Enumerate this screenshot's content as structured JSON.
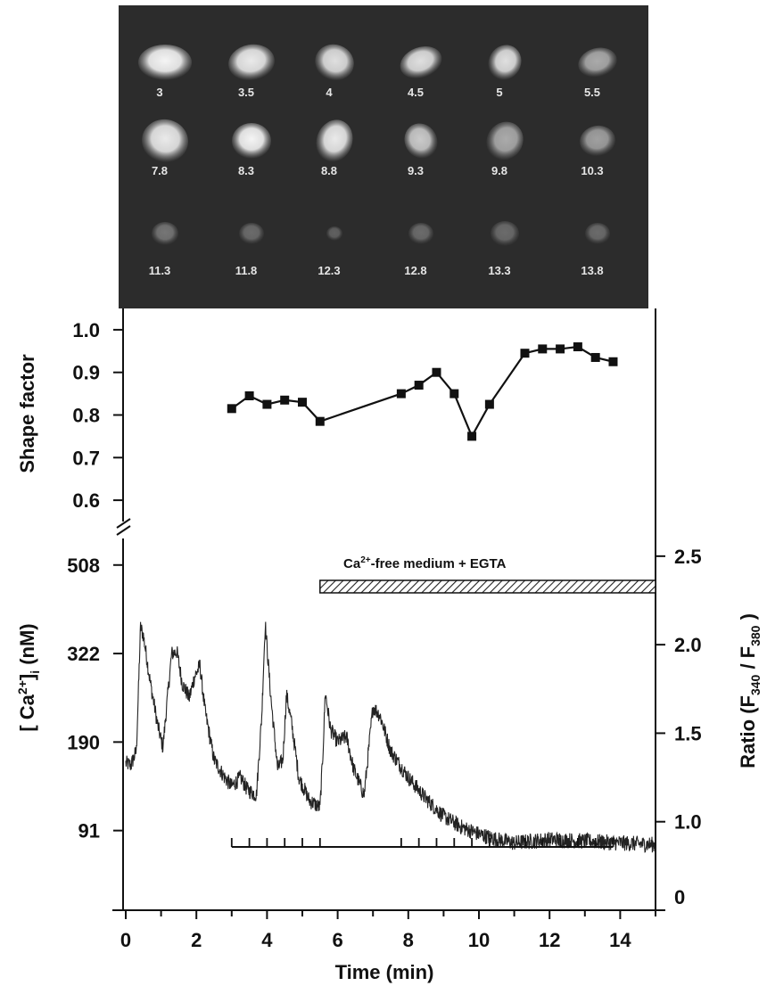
{
  "chart_data": [
    {
      "type": "image-grid",
      "panel": "cell-images",
      "frame_times_min": [
        "3",
        "3.5",
        "4",
        "4.5",
        "5",
        "5.5",
        "7.8",
        "8.3",
        "8.8",
        "9.3",
        "9.8",
        "10.3",
        "11.3",
        "11.8",
        "12.3",
        "12.8",
        "13.3",
        "13.8"
      ],
      "brightness": [
        0.95,
        0.9,
        0.85,
        0.85,
        0.85,
        0.6,
        0.9,
        0.95,
        0.9,
        0.75,
        0.6,
        0.55,
        0.35,
        0.3,
        0.25,
        0.3,
        0.3,
        0.3
      ]
    },
    {
      "type": "line",
      "panel": "shape-factor",
      "ylabel": "Shape factor",
      "ylim": [
        0.55,
        1.05
      ],
      "yticks": [
        "0.6",
        "0.7",
        "0.8",
        "0.9",
        "1.0"
      ],
      "series": [
        {
          "x": [
            3,
            3.5,
            4,
            4.5,
            5,
            5.5,
            7.8,
            8.3,
            8.8,
            9.3,
            9.8,
            10.3,
            11.3,
            11.8,
            12.3,
            12.8,
            13.3,
            13.8
          ],
          "values": [
            0.815,
            0.845,
            0.825,
            0.835,
            0.83,
            0.785,
            0.85,
            0.87,
            0.9,
            0.85,
            0.75,
            0.825,
            0.945,
            0.955,
            0.955,
            0.96,
            0.935,
            0.925
          ]
        }
      ]
    },
    {
      "type": "line",
      "panel": "calcium",
      "xlabel": "Time (min)",
      "ylabel": "[Ca2+]i (nM)",
      "ylabel2": "Ratio (F340 / F380)",
      "xlim": [
        0,
        15
      ],
      "ylim_ratio": [
        0.5,
        2.6
      ],
      "xticks": [
        "0",
        "2",
        "4",
        "6",
        "8",
        "10",
        "12",
        "14"
      ],
      "yticks_left": [
        "91",
        "190",
        "322",
        "508"
      ],
      "yticks_left_ratio": [
        0.95,
        1.45,
        1.95,
        2.45
      ],
      "yticks_right": [
        "1.0",
        "1.5",
        "2.0",
        "2.5"
      ],
      "yticks_right_ratio": [
        1.0,
        1.5,
        2.0,
        2.5
      ],
      "right_zero_label": "0",
      "annotation": "Ca2+-free medium + EGTA",
      "annotation_x": [
        5.5,
        15
      ],
      "image_marks_min": [
        3,
        3.5,
        4,
        4.5,
        5,
        5.5,
        7.8,
        8.3,
        8.8,
        9.3,
        9.8,
        10.3,
        11.3,
        11.8,
        12.3,
        12.8,
        13.3,
        13.8
      ],
      "trace_keypoints": [
        [
          0.0,
          1.33
        ],
        [
          0.15,
          1.32
        ],
        [
          0.3,
          1.4
        ],
        [
          0.42,
          2.1
        ],
        [
          0.5,
          2.05
        ],
        [
          0.7,
          1.78
        ],
        [
          0.9,
          1.55
        ],
        [
          1.05,
          1.42
        ],
        [
          1.3,
          1.95
        ],
        [
          1.45,
          1.96
        ],
        [
          1.6,
          1.78
        ],
        [
          1.8,
          1.7
        ],
        [
          1.95,
          1.82
        ],
        [
          2.1,
          1.88
        ],
        [
          2.25,
          1.62
        ],
        [
          2.5,
          1.35
        ],
        [
          2.8,
          1.25
        ],
        [
          3.0,
          1.2
        ],
        [
          3.25,
          1.25
        ],
        [
          3.45,
          1.18
        ],
        [
          3.7,
          1.15
        ],
        [
          3.85,
          1.6
        ],
        [
          3.95,
          2.12
        ],
        [
          4.1,
          1.72
        ],
        [
          4.3,
          1.3
        ],
        [
          4.45,
          1.35
        ],
        [
          4.55,
          1.72
        ],
        [
          4.7,
          1.55
        ],
        [
          4.9,
          1.25
        ],
        [
          5.2,
          1.12
        ],
        [
          5.5,
          1.08
        ],
        [
          5.58,
          1.38
        ],
        [
          5.65,
          1.73
        ],
        [
          5.8,
          1.52
        ],
        [
          6.0,
          1.45
        ],
        [
          6.25,
          1.48
        ],
        [
          6.45,
          1.3
        ],
        [
          6.75,
          1.15
        ],
        [
          6.85,
          1.35
        ],
        [
          7.0,
          1.65
        ],
        [
          7.2,
          1.6
        ],
        [
          7.5,
          1.4
        ],
        [
          8.0,
          1.25
        ],
        [
          8.5,
          1.13
        ],
        [
          9.0,
          1.03
        ],
        [
          9.5,
          0.97
        ],
        [
          10.0,
          0.93
        ],
        [
          10.5,
          0.9
        ],
        [
          11.0,
          0.88
        ],
        [
          12.0,
          0.9
        ],
        [
          13.0,
          0.89
        ],
        [
          14.0,
          0.88
        ],
        [
          15.0,
          0.87
        ]
      ]
    }
  ]
}
